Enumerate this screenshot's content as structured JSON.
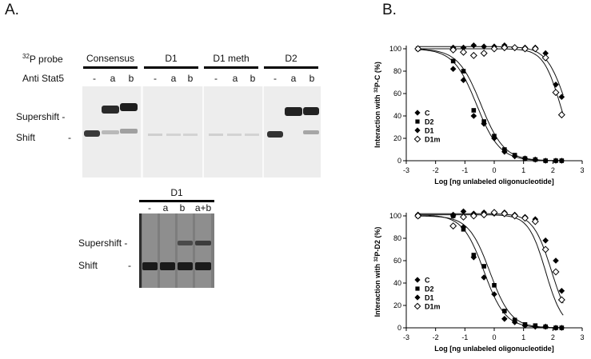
{
  "panel_a": {
    "label": "A.",
    "probe_row": {
      "label_sup": "32",
      "label_text": "P probe",
      "groups": [
        "Consensus",
        "D1",
        "D1 meth",
        "D2"
      ]
    },
    "antibody_row": {
      "label": "Anti Stat5",
      "lanes": [
        "-",
        "a",
        "b",
        "-",
        "a",
        "b",
        "-",
        "a",
        "b",
        "-",
        "a",
        "b"
      ]
    },
    "band_labels": {
      "supershift": "Supershift -",
      "shift": "Shift",
      "shift_dash": "-"
    },
    "inset": {
      "group": "D1",
      "lanes": [
        "-",
        "a",
        "b",
        "a+b"
      ],
      "supershift": "Supershift -",
      "shift": "Shift",
      "shift_dash": "-"
    }
  },
  "panel_b": {
    "label": "B."
  },
  "chart_data": [
    {
      "type": "scatter",
      "title": "",
      "xlabel": "Log [ng unlabeled oligonucleotide]",
      "ylabel_pre": "Interaction with ",
      "ylabel_sup": "32",
      "ylabel_post": "P-C  (%)",
      "xlim": [
        -3,
        3
      ],
      "ylim": [
        0,
        100
      ],
      "xticks": [
        -3,
        -2,
        -1,
        0,
        1,
        2,
        3
      ],
      "yticks": [
        0,
        20,
        40,
        60,
        80,
        100
      ],
      "legend_position": "left",
      "series": [
        {
          "name": "C",
          "marker": "diamond",
          "x": [
            -2.6,
            -1.4,
            -1.05,
            -0.7,
            -0.35,
            0.0,
            0.35,
            0.7,
            1.05,
            1.4,
            1.75,
            2.1,
            2.3
          ],
          "y": [
            100,
            82,
            72,
            40,
            33,
            20,
            8,
            4,
            2,
            1,
            0,
            0,
            0
          ],
          "fit": {
            "top": 100,
            "bottom": 0,
            "logEC50": -0.6,
            "hill": 1.1
          }
        },
        {
          "name": "D2",
          "marker": "square",
          "x": [
            -2.6,
            -1.4,
            -1.05,
            -0.7,
            -0.35,
            0.0,
            0.35,
            0.7,
            1.05,
            1.4,
            1.75,
            2.1,
            2.3
          ],
          "y": [
            100,
            89,
            80,
            45,
            35,
            22,
            10,
            5,
            2,
            1,
            0,
            0,
            0
          ],
          "fit": {
            "top": 100,
            "bottom": 0,
            "logEC50": -0.45,
            "hill": 1.1
          }
        },
        {
          "name": "D1",
          "marker": "diamond",
          "x": [
            -2.6,
            -1.4,
            -1.05,
            -0.7,
            -0.35,
            0.0,
            0.35,
            0.7,
            1.05,
            1.4,
            1.75,
            2.1,
            2.3
          ],
          "y": [
            100,
            101,
            101,
            103,
            102,
            102,
            103,
            101,
            101,
            101,
            96,
            68,
            57
          ],
          "fit": {
            "top": 102,
            "bottom": 0,
            "logEC50": 2.45,
            "hill": 1.3
          }
        },
        {
          "name": "D1m",
          "marker": "diamond-open",
          "x": [
            -2.6,
            -1.4,
            -1.05,
            -0.7,
            -0.35,
            0.0,
            0.35,
            0.7,
            1.05,
            1.4,
            1.75,
            2.1,
            2.3
          ],
          "y": [
            100,
            99,
            97,
            94,
            96,
            100,
            101,
            101,
            100,
            100,
            92,
            61,
            41
          ],
          "fit": {
            "top": 100,
            "bottom": 0,
            "logEC50": 2.25,
            "hill": 1.5
          }
        }
      ]
    },
    {
      "type": "scatter",
      "title": "",
      "xlabel": "Log [ng unlabeled oligonucleotide]",
      "ylabel_pre": "Interaction with ",
      "ylabel_sup": "32",
      "ylabel_post": "P-D2  (%)",
      "xlim": [
        -3,
        3
      ],
      "ylim": [
        0,
        100
      ],
      "xticks": [
        -3,
        -2,
        -1,
        0,
        1,
        2,
        3
      ],
      "yticks": [
        0,
        20,
        40,
        60,
        80,
        100
      ],
      "legend_position": "left",
      "series": [
        {
          "name": "C",
          "marker": "diamond",
          "x": [
            -2.6,
            -1.4,
            -1.05,
            -0.7,
            -0.35,
            0.0,
            0.35,
            0.7,
            1.05,
            1.4,
            1.75,
            2.1,
            2.3
          ],
          "y": [
            101,
            100,
            90,
            63,
            45,
            30,
            8,
            5,
            2,
            1,
            1,
            0,
            0
          ],
          "fit": {
            "top": 101,
            "bottom": 0,
            "logEC50": -0.35,
            "hill": 1.2
          }
        },
        {
          "name": "D2",
          "marker": "square",
          "x": [
            -2.6,
            -1.4,
            -1.05,
            -0.7,
            -0.35,
            0.0,
            0.35,
            0.7,
            1.05,
            1.4,
            1.75,
            2.1,
            2.3
          ],
          "y": [
            100,
            100,
            88,
            65,
            55,
            38,
            15,
            7,
            3,
            2,
            1,
            0,
            0
          ],
          "fit": {
            "top": 100,
            "bottom": 0,
            "logEC50": -0.15,
            "hill": 1.2
          }
        },
        {
          "name": "D1",
          "marker": "diamond",
          "x": [
            -2.6,
            -1.4,
            -1.05,
            -0.7,
            -0.35,
            0.0,
            0.35,
            0.7,
            1.05,
            1.4,
            1.75,
            2.1,
            2.3
          ],
          "y": [
            101,
            101,
            104,
            102,
            103,
            102,
            103,
            101,
            99,
            97,
            78,
            60,
            33
          ],
          "fit": {
            "top": 102,
            "bottom": 0,
            "logEC50": 1.95,
            "hill": 1.4
          }
        },
        {
          "name": "D1m",
          "marker": "diamond-open",
          "x": [
            -2.6,
            -1.4,
            -1.05,
            -0.7,
            -0.35,
            0.0,
            0.35,
            0.7,
            1.05,
            1.4,
            1.75,
            2.1,
            2.3
          ],
          "y": [
            100,
            91,
            99,
            100,
            101,
            103,
            102,
            100,
            98,
            95,
            70,
            50,
            25
          ],
          "fit": {
            "top": 101,
            "bottom": 0,
            "logEC50": 1.75,
            "hill": 1.5
          }
        }
      ]
    }
  ]
}
